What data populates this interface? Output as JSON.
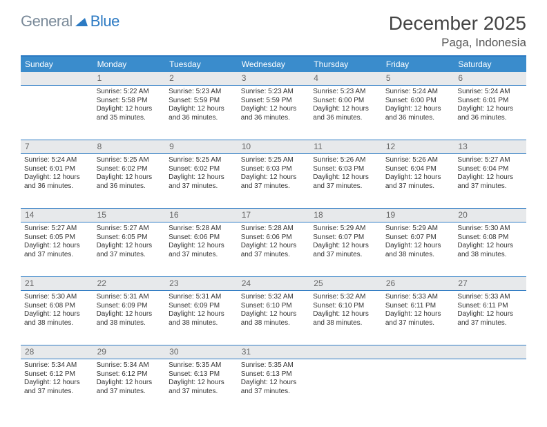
{
  "logo": {
    "word1": "General",
    "word2": "Blue"
  },
  "title": "December 2025",
  "location": "Paga, Indonesia",
  "colors": {
    "header_bg": "#3a8ccc",
    "border": "#2c7ac3",
    "daynum_bg": "#e7e9eb",
    "logo_gray": "#7a8a99",
    "logo_blue": "#2c7ac3"
  },
  "day_names": [
    "Sunday",
    "Monday",
    "Tuesday",
    "Wednesday",
    "Thursday",
    "Friday",
    "Saturday"
  ],
  "weeks": [
    {
      "nums": [
        "",
        "1",
        "2",
        "3",
        "4",
        "5",
        "6"
      ],
      "cells": [
        null,
        {
          "sr": "Sunrise: 5:22 AM",
          "ss": "Sunset: 5:58 PM",
          "dl": "Daylight: 12 hours and 35 minutes."
        },
        {
          "sr": "Sunrise: 5:23 AM",
          "ss": "Sunset: 5:59 PM",
          "dl": "Daylight: 12 hours and 36 minutes."
        },
        {
          "sr": "Sunrise: 5:23 AM",
          "ss": "Sunset: 5:59 PM",
          "dl": "Daylight: 12 hours and 36 minutes."
        },
        {
          "sr": "Sunrise: 5:23 AM",
          "ss": "Sunset: 6:00 PM",
          "dl": "Daylight: 12 hours and 36 minutes."
        },
        {
          "sr": "Sunrise: 5:24 AM",
          "ss": "Sunset: 6:00 PM",
          "dl": "Daylight: 12 hours and 36 minutes."
        },
        {
          "sr": "Sunrise: 5:24 AM",
          "ss": "Sunset: 6:01 PM",
          "dl": "Daylight: 12 hours and 36 minutes."
        }
      ]
    },
    {
      "nums": [
        "7",
        "8",
        "9",
        "10",
        "11",
        "12",
        "13"
      ],
      "cells": [
        {
          "sr": "Sunrise: 5:24 AM",
          "ss": "Sunset: 6:01 PM",
          "dl": "Daylight: 12 hours and 36 minutes."
        },
        {
          "sr": "Sunrise: 5:25 AM",
          "ss": "Sunset: 6:02 PM",
          "dl": "Daylight: 12 hours and 36 minutes."
        },
        {
          "sr": "Sunrise: 5:25 AM",
          "ss": "Sunset: 6:02 PM",
          "dl": "Daylight: 12 hours and 37 minutes."
        },
        {
          "sr": "Sunrise: 5:25 AM",
          "ss": "Sunset: 6:03 PM",
          "dl": "Daylight: 12 hours and 37 minutes."
        },
        {
          "sr": "Sunrise: 5:26 AM",
          "ss": "Sunset: 6:03 PM",
          "dl": "Daylight: 12 hours and 37 minutes."
        },
        {
          "sr": "Sunrise: 5:26 AM",
          "ss": "Sunset: 6:04 PM",
          "dl": "Daylight: 12 hours and 37 minutes."
        },
        {
          "sr": "Sunrise: 5:27 AM",
          "ss": "Sunset: 6:04 PM",
          "dl": "Daylight: 12 hours and 37 minutes."
        }
      ]
    },
    {
      "nums": [
        "14",
        "15",
        "16",
        "17",
        "18",
        "19",
        "20"
      ],
      "cells": [
        {
          "sr": "Sunrise: 5:27 AM",
          "ss": "Sunset: 6:05 PM",
          "dl": "Daylight: 12 hours and 37 minutes."
        },
        {
          "sr": "Sunrise: 5:27 AM",
          "ss": "Sunset: 6:05 PM",
          "dl": "Daylight: 12 hours and 37 minutes."
        },
        {
          "sr": "Sunrise: 5:28 AM",
          "ss": "Sunset: 6:06 PM",
          "dl": "Daylight: 12 hours and 37 minutes."
        },
        {
          "sr": "Sunrise: 5:28 AM",
          "ss": "Sunset: 6:06 PM",
          "dl": "Daylight: 12 hours and 37 minutes."
        },
        {
          "sr": "Sunrise: 5:29 AM",
          "ss": "Sunset: 6:07 PM",
          "dl": "Daylight: 12 hours and 37 minutes."
        },
        {
          "sr": "Sunrise: 5:29 AM",
          "ss": "Sunset: 6:07 PM",
          "dl": "Daylight: 12 hours and 38 minutes."
        },
        {
          "sr": "Sunrise: 5:30 AM",
          "ss": "Sunset: 6:08 PM",
          "dl": "Daylight: 12 hours and 38 minutes."
        }
      ]
    },
    {
      "nums": [
        "21",
        "22",
        "23",
        "24",
        "25",
        "26",
        "27"
      ],
      "cells": [
        {
          "sr": "Sunrise: 5:30 AM",
          "ss": "Sunset: 6:08 PM",
          "dl": "Daylight: 12 hours and 38 minutes."
        },
        {
          "sr": "Sunrise: 5:31 AM",
          "ss": "Sunset: 6:09 PM",
          "dl": "Daylight: 12 hours and 38 minutes."
        },
        {
          "sr": "Sunrise: 5:31 AM",
          "ss": "Sunset: 6:09 PM",
          "dl": "Daylight: 12 hours and 38 minutes."
        },
        {
          "sr": "Sunrise: 5:32 AM",
          "ss": "Sunset: 6:10 PM",
          "dl": "Daylight: 12 hours and 38 minutes."
        },
        {
          "sr": "Sunrise: 5:32 AM",
          "ss": "Sunset: 6:10 PM",
          "dl": "Daylight: 12 hours and 38 minutes."
        },
        {
          "sr": "Sunrise: 5:33 AM",
          "ss": "Sunset: 6:11 PM",
          "dl": "Daylight: 12 hours and 37 minutes."
        },
        {
          "sr": "Sunrise: 5:33 AM",
          "ss": "Sunset: 6:11 PM",
          "dl": "Daylight: 12 hours and 37 minutes."
        }
      ]
    },
    {
      "nums": [
        "28",
        "29",
        "30",
        "31",
        "",
        "",
        ""
      ],
      "cells": [
        {
          "sr": "Sunrise: 5:34 AM",
          "ss": "Sunset: 6:12 PM",
          "dl": "Daylight: 12 hours and 37 minutes."
        },
        {
          "sr": "Sunrise: 5:34 AM",
          "ss": "Sunset: 6:12 PM",
          "dl": "Daylight: 12 hours and 37 minutes."
        },
        {
          "sr": "Sunrise: 5:35 AM",
          "ss": "Sunset: 6:13 PM",
          "dl": "Daylight: 12 hours and 37 minutes."
        },
        {
          "sr": "Sunrise: 5:35 AM",
          "ss": "Sunset: 6:13 PM",
          "dl": "Daylight: 12 hours and 37 minutes."
        },
        null,
        null,
        null
      ]
    }
  ]
}
